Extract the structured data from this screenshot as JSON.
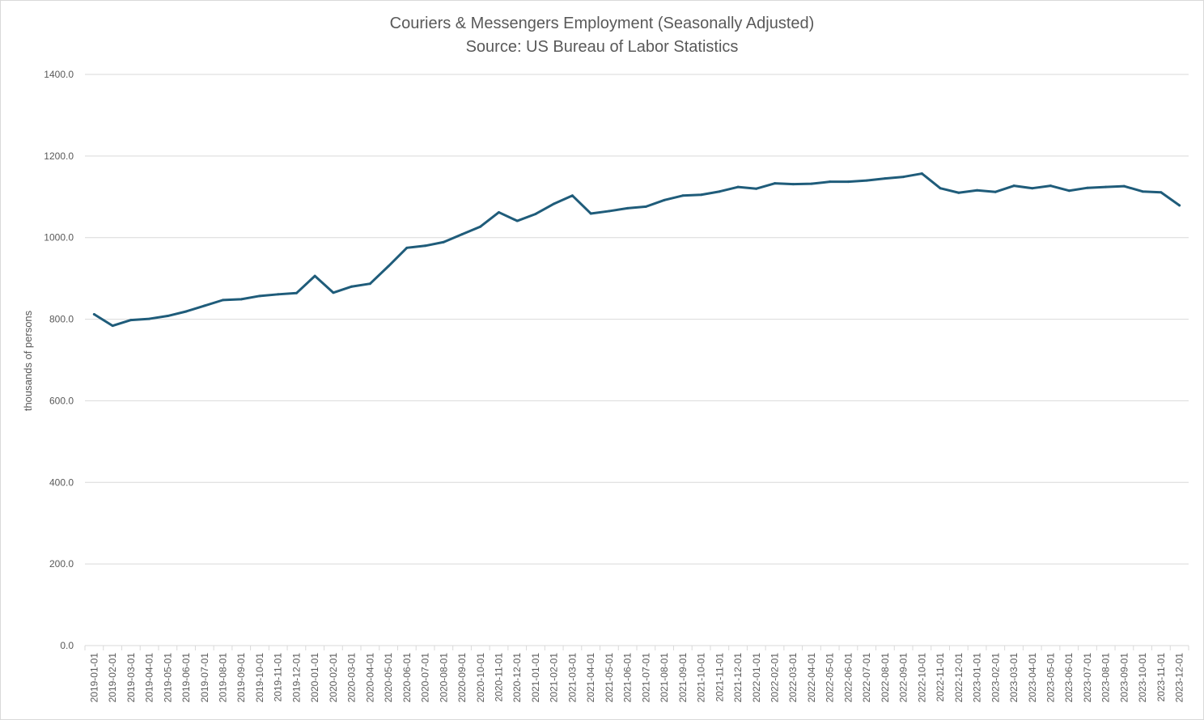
{
  "chart_data": {
    "type": "line",
    "title": "Couriers & Messengers Employment (Seasonally Adjusted)",
    "subtitle": "Source: US Bureau of Labor Statistics",
    "xlabel": "",
    "ylabel": "thousands of persons",
    "ylim": [
      0,
      1400
    ],
    "y_ticks": [
      "0.0",
      "200.0",
      "400.0",
      "600.0",
      "800.0",
      "1000.0",
      "1200.0",
      "1400.0"
    ],
    "grid": true,
    "legend": "none",
    "line_color": "#1f5c7a",
    "categories": [
      "2019-01-01",
      "2019-02-01",
      "2019-03-01",
      "2019-04-01",
      "2019-05-01",
      "2019-06-01",
      "2019-07-01",
      "2019-08-01",
      "2019-09-01",
      "2019-10-01",
      "2019-11-01",
      "2019-12-01",
      "2020-01-01",
      "2020-02-01",
      "2020-03-01",
      "2020-04-01",
      "2020-05-01",
      "2020-06-01",
      "2020-07-01",
      "2020-08-01",
      "2020-09-01",
      "2020-10-01",
      "2020-11-01",
      "2020-12-01",
      "2021-01-01",
      "2021-02-01",
      "2021-03-01",
      "2021-04-01",
      "2021-05-01",
      "2021-06-01",
      "2021-07-01",
      "2021-08-01",
      "2021-09-01",
      "2021-10-01",
      "2021-11-01",
      "2021-12-01",
      "2022-01-01",
      "2022-02-01",
      "2022-03-01",
      "2022-04-01",
      "2022-05-01",
      "2022-06-01",
      "2022-07-01",
      "2022-08-01",
      "2022-09-01",
      "2022-10-01",
      "2022-11-01",
      "2022-12-01",
      "2023-01-01",
      "2023-02-01",
      "2023-03-01",
      "2023-04-01",
      "2023-05-01",
      "2023-06-01",
      "2023-07-01",
      "2023-08-01",
      "2023-09-01",
      "2023-10-01",
      "2023-11-01",
      "2023-12-01"
    ],
    "series": [
      {
        "values": [
          812,
          784,
          798,
          801,
          808,
          819,
          833,
          847,
          849,
          857,
          861,
          864,
          906,
          865,
          880,
          887,
          930,
          975,
          980,
          989,
          1008,
          1027,
          1062,
          1041,
          1058,
          1083,
          1103,
          1059,
          1065,
          1072,
          1076,
          1092,
          1103,
          1105,
          1113,
          1124,
          1120,
          1133,
          1131,
          1132,
          1137,
          1137,
          1140,
          1145,
          1149,
          1157,
          1121,
          1110,
          1116,
          1112,
          1127,
          1121,
          1127,
          1115,
          1122,
          1124,
          1126,
          1113,
          1111,
          1079
        ]
      }
    ]
  }
}
